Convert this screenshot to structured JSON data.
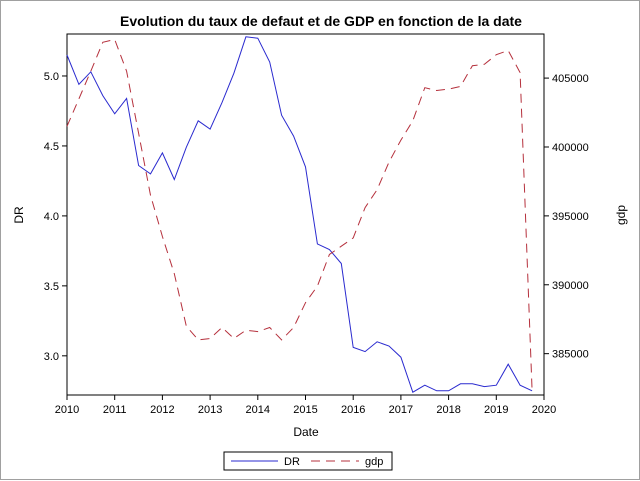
{
  "chart_data": {
    "type": "line",
    "title": "Evolution du taux de defaut et de GDP en fonction de la date",
    "xlabel": "Date",
    "ylabel_left": "DR",
    "ylabel_right": "gdp",
    "xlim": [
      2010,
      2020
    ],
    "ylim_left": [
      2.72,
      5.3
    ],
    "ylim_right": [
      382000,
      408200
    ],
    "x_ticks": [
      "2010",
      "2011",
      "2012",
      "2013",
      "2014",
      "2015",
      "2016",
      "2017",
      "2018",
      "2019",
      "2020"
    ],
    "y_ticks_left": [
      "3.0",
      "3.5",
      "4.0",
      "4.5",
      "5.0"
    ],
    "y_ticks_right": [
      "385000",
      "390000",
      "395000",
      "400000",
      "405000"
    ],
    "legend_position": "bottom-center",
    "series": [
      {
        "name": "DR",
        "axis": "left",
        "color": "#2a2acf",
        "style": "solid",
        "x": [
          2010.0,
          2010.25,
          2010.5,
          2010.75,
          2011.0,
          2011.25,
          2011.5,
          2011.75,
          2012.0,
          2012.25,
          2012.5,
          2012.75,
          2013.0,
          2013.25,
          2013.5,
          2013.75,
          2014.0,
          2014.25,
          2014.5,
          2014.75,
          2015.0,
          2015.25,
          2015.5,
          2015.75,
          2016.0,
          2016.25,
          2016.5,
          2016.75,
          2017.0,
          2017.25,
          2017.5,
          2017.75,
          2018.0,
          2018.25,
          2018.5,
          2018.75,
          2019.0,
          2019.25,
          2019.5,
          2019.75
        ],
        "y": [
          5.15,
          4.94,
          5.03,
          4.86,
          4.73,
          4.84,
          4.36,
          4.3,
          4.45,
          4.26,
          4.49,
          4.68,
          4.62,
          4.81,
          5.02,
          5.28,
          5.27,
          5.1,
          4.72,
          4.57,
          4.35,
          3.8,
          3.76,
          3.66,
          3.06,
          3.03,
          3.1,
          3.07,
          2.99,
          2.74,
          2.79,
          2.75,
          2.75,
          2.8,
          2.8,
          2.78,
          2.79,
          2.94,
          2.79,
          2.75
        ]
      },
      {
        "name": "gdp",
        "axis": "right",
        "color": "#b5303c",
        "style": "dashed",
        "x": [
          2010.0,
          2010.25,
          2010.5,
          2010.75,
          2011.0,
          2011.25,
          2011.5,
          2011.75,
          2012.0,
          2012.25,
          2012.5,
          2012.75,
          2013.0,
          2013.25,
          2013.5,
          2013.75,
          2014.0,
          2014.25,
          2014.5,
          2014.75,
          2015.0,
          2015.25,
          2015.5,
          2015.75,
          2016.0,
          2016.25,
          2016.5,
          2016.75,
          2017.0,
          2017.25,
          2017.5,
          2017.75,
          2018.0,
          2018.25,
          2018.5,
          2018.75,
          2019.0,
          2019.25,
          2019.5,
          2019.75
        ],
        "y": [
          401500,
          403500,
          405500,
          407600,
          407800,
          405500,
          401000,
          396500,
          393500,
          390800,
          387000,
          386000,
          386100,
          386900,
          386100,
          386700,
          386600,
          386900,
          386000,
          386900,
          388700,
          389900,
          392200,
          392800,
          393400,
          395600,
          396900,
          398900,
          400500,
          401900,
          404300,
          404100,
          404200,
          404400,
          405900,
          406000,
          406700,
          407000,
          405400,
          382300
        ]
      }
    ]
  }
}
